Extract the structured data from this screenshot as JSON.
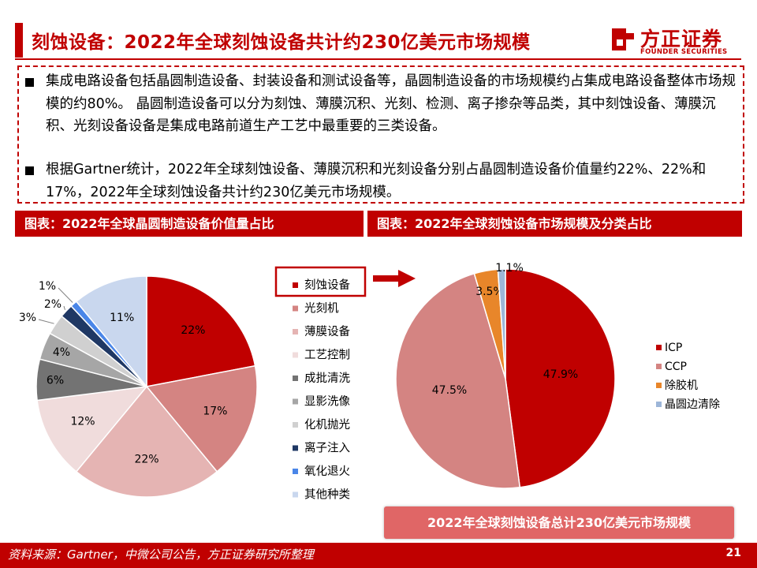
{
  "header": {
    "title": "刻蚀设备：2022年全球刻蚀设备共计约230亿美元市场规模",
    "logo_cn": "方正证券",
    "logo_en": "FOUNDER SECURITIES"
  },
  "summary": {
    "bullets": [
      "集成电路设备包括晶圆制造设备、封装设备和测试设备等，晶圆制造设备的市场规模约占集成电路设备整体市场规模的约80%。 晶圆制造设备可以分为刻蚀、薄膜沉积、光刻、检测、离子掺杂等品类，其中刻蚀设备、薄膜沉积、光刻设备设备是集成电路前道生产工艺中最重要的三类设备。",
      "根据Gartner统计，2022年全球刻蚀设备、薄膜沉积和光刻设备分别占晶圆制造设备价值量约22%、22%和17%，2022年全球刻蚀设备共计约230亿美元市场规模。"
    ]
  },
  "panels": {
    "left_header": "图表：2022年全球晶圆制造设备价值量占比",
    "right_header": "图表：2022年全球刻蚀设备市场规模及分类占比"
  },
  "total_banner": "2022年全球刻蚀设备总计230亿美元市场规模",
  "footer": {
    "source": "资料来源：Gartner，中微公司公告，方正证券研究所整理",
    "page": "21"
  },
  "colors": {
    "brand_red": "#c00000"
  },
  "chart_data": [
    {
      "type": "pie",
      "categories": [
        "刻蚀设备",
        "光刻机",
        "薄膜设备",
        "工艺控制",
        "成批清洗",
        "显影洗像",
        "化机抛光",
        "离子注入",
        "氧化退火",
        "其他种类"
      ],
      "values": [
        22,
        17,
        22,
        12,
        6,
        4,
        3,
        2,
        1,
        11
      ],
      "labels": [
        "22%",
        "17%",
        "22%",
        "12%",
        "6%",
        "4%",
        "3%",
        "2%",
        "1%",
        "11%"
      ],
      "colors": [
        "#c00000",
        "#d48482",
        "#e5b4b3",
        "#f0dcdc",
        "#737373",
        "#a6a6a6",
        "#d0d0d0",
        "#1f3864",
        "#4a86e8",
        "#c9d7ee"
      ],
      "legend_position": "right",
      "highlighted_legend_item": "刻蚀设备"
    },
    {
      "type": "pie",
      "categories": [
        "ICP",
        "CCP",
        "除胶机",
        "晶圆边清除"
      ],
      "values": [
        47.9,
        47.5,
        3.5,
        1.1
      ],
      "labels": [
        "47.9%",
        "47.5%",
        "3.5%",
        "1.1%"
      ],
      "colors": [
        "#c00000",
        "#d48482",
        "#e8862a",
        "#9db6d8"
      ],
      "legend_position": "right"
    }
  ]
}
